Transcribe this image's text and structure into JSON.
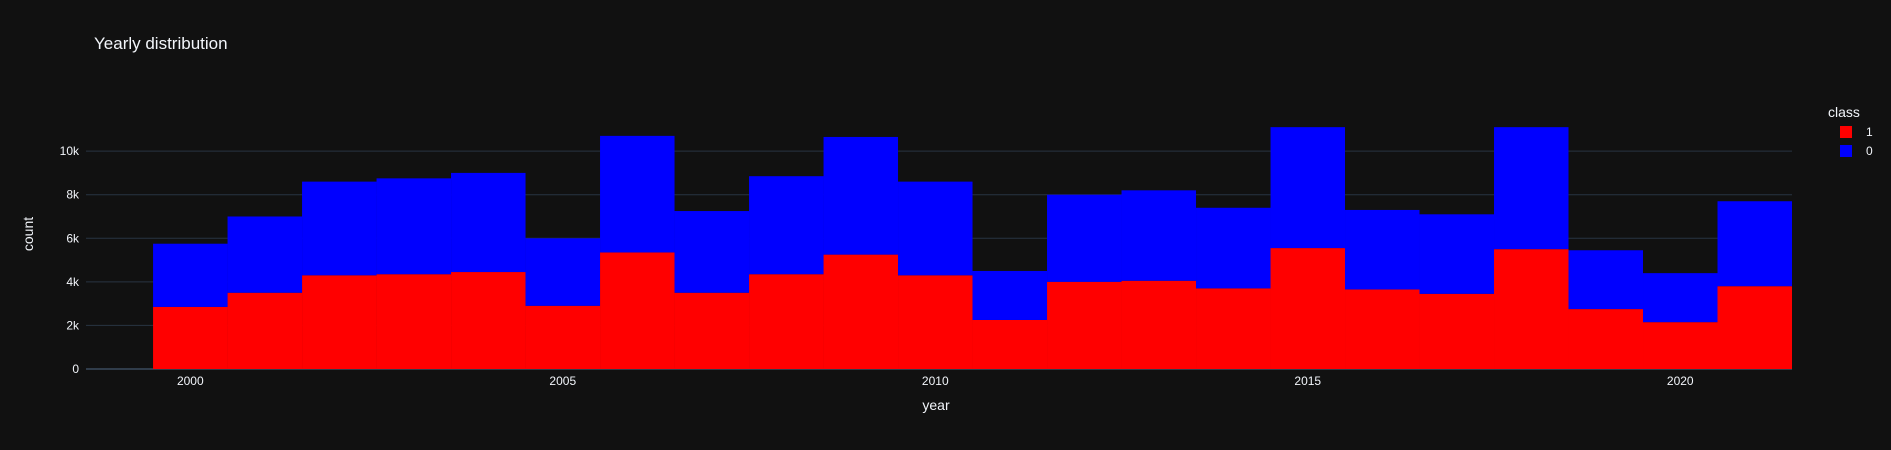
{
  "chart_data": {
    "type": "bar",
    "barmode": "stack",
    "title": "Yearly distribution",
    "xlabel": "year",
    "ylabel": "count",
    "x": [
      2000,
      2001,
      2002,
      2003,
      2004,
      2005,
      2006,
      2007,
      2008,
      2009,
      2010,
      2011,
      2012,
      2013,
      2014,
      2015,
      2016,
      2017,
      2018,
      2019,
      2020,
      2021
    ],
    "xlim": [
      1998.6,
      2021.5
    ],
    "ylim": [
      0,
      12300
    ],
    "xticks": [
      2000,
      2005,
      2010,
      2015,
      2020
    ],
    "xtick_labels": [
      "2000",
      "2005",
      "2010",
      "2015",
      "2020"
    ],
    "yticks": [
      0,
      2000,
      4000,
      6000,
      8000,
      10000
    ],
    "ytick_labels": [
      "0",
      "2k",
      "4k",
      "6k",
      "8k",
      "10k"
    ],
    "legend_title": "class",
    "legend_position": "top-right",
    "grid": true,
    "series": [
      {
        "name": "1",
        "color": "#ff0000",
        "values": [
          2850,
          3500,
          4300,
          4350,
          4450,
          2900,
          5350,
          3500,
          4350,
          5250,
          4300,
          2250,
          4000,
          4050,
          3700,
          5550,
          3650,
          3450,
          5500,
          2750,
          2150,
          3800
        ]
      },
      {
        "name": "0",
        "color": "#0000ff",
        "values": [
          2900,
          3500,
          4300,
          4400,
          4550,
          3100,
          5350,
          3750,
          4500,
          5400,
          4300,
          2250,
          4000,
          4150,
          3700,
          5550,
          3650,
          3650,
          5600,
          2700,
          2250,
          3900
        ]
      }
    ]
  },
  "colors": {
    "background": "#111111",
    "grid": "#283442",
    "text": "#f2f5fa"
  }
}
